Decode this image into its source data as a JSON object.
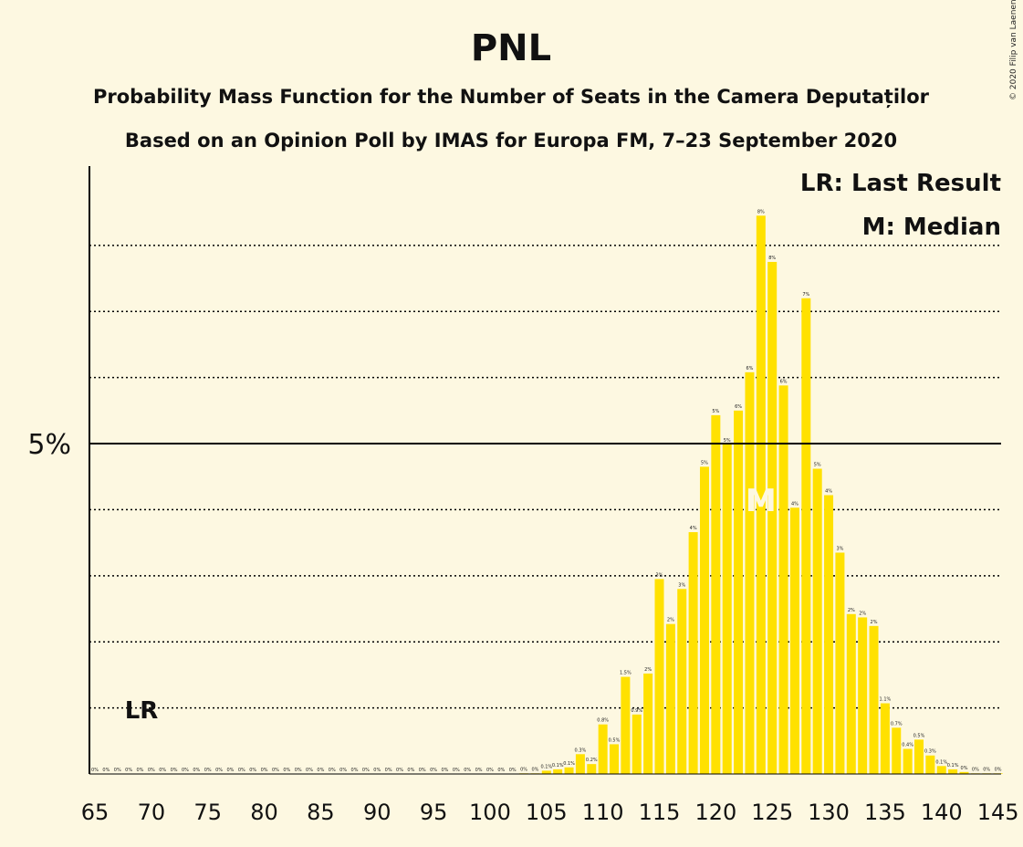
{
  "chart_data": {
    "type": "bar",
    "title": "PNL",
    "subtitle": "Probability Mass Function for the Number of Seats in the Camera Deputaților",
    "subtitle2": "Based on an Opinion Poll by IMAS for Europa FM, 7–23 September 2020",
    "copyright": "© 2020 Filip van Laenen",
    "legend": [
      "LR: Last Result",
      "M: Median"
    ],
    "legend_position": "top-right",
    "lr_seat": 69,
    "lr_label": "LR",
    "median_seat": 124,
    "median_label": "M",
    "y_tick_label": "5%",
    "y_tick_value": 5,
    "ylim": [
      0,
      9.2
    ],
    "grid": [
      1,
      2,
      3,
      4,
      6,
      7,
      8
    ],
    "x": [
      65,
      66,
      67,
      68,
      69,
      70,
      71,
      72,
      73,
      74,
      75,
      76,
      77,
      78,
      79,
      80,
      81,
      82,
      83,
      84,
      85,
      86,
      87,
      88,
      89,
      90,
      91,
      92,
      93,
      94,
      95,
      96,
      97,
      98,
      99,
      100,
      101,
      102,
      103,
      104,
      105,
      106,
      107,
      108,
      109,
      110,
      111,
      112,
      113,
      114,
      115,
      116,
      117,
      118,
      119,
      120,
      121,
      122,
      123,
      124,
      125,
      126,
      127,
      128,
      129,
      130,
      131,
      132,
      133,
      134,
      135,
      136,
      137,
      138,
      139,
      140,
      141,
      142,
      143,
      144,
      145
    ],
    "values": [
      0,
      0,
      0,
      0,
      0,
      0,
      0,
      0,
      0,
      0,
      0,
      0,
      0,
      0,
      0,
      0,
      0,
      0,
      0,
      0,
      0,
      0,
      0,
      0,
      0,
      0,
      0,
      0,
      0,
      0,
      0,
      0,
      0,
      0,
      0,
      0,
      0,
      0,
      0.01,
      0.01,
      0.05,
      0.07,
      0.1,
      0.3,
      0.15,
      0.75,
      0.45,
      1.47,
      0.9,
      1.52,
      2.95,
      2.27,
      2.8,
      3.66,
      4.65,
      5.43,
      4.99,
      5.5,
      6.08,
      8.45,
      7.75,
      5.88,
      4.03,
      7.2,
      4.62,
      4.22,
      3.35,
      2.42,
      2.37,
      2.24,
      1.07,
      0.7,
      0.38,
      0.52,
      0.28,
      0.12,
      0.07,
      0.03,
      0.01,
      0.01,
      0.01
    ],
    "labels": [
      "0%",
      "0%",
      "0%",
      "0%",
      "0%",
      "0%",
      "0%",
      "0%",
      "0%",
      "0%",
      "0%",
      "0%",
      "0%",
      "0%",
      "0%",
      "0%",
      "0%",
      "0%",
      "0%",
      "0%",
      "0%",
      "0%",
      "0%",
      "0%",
      "0%",
      "0%",
      "0%",
      "0%",
      "0%",
      "0%",
      "0%",
      "0%",
      "0%",
      "0%",
      "0%",
      "0%",
      "0%",
      "0%",
      "0%",
      "0%",
      "0.1%",
      "0.1%",
      "0.1%",
      "0.3%",
      "0.2%",
      "0.8%",
      "0.5%",
      "1.5%",
      "0.9%",
      "2%",
      "3%",
      "2%",
      "3%",
      "4%",
      "5%",
      "5%",
      "5%",
      "6%",
      "6%",
      "8%",
      "8%",
      "6%",
      "4%",
      "7%",
      "5%",
      "4%",
      "3%",
      "2%",
      "2%",
      "2%",
      "1.1%",
      "0.7%",
      "0.4%",
      "0.5%",
      "0.3%",
      "0.1%",
      "0.1%",
      "0%",
      "0%",
      "0%",
      "0%"
    ],
    "x_ticks": [
      65,
      70,
      75,
      80,
      85,
      90,
      95,
      100,
      105,
      110,
      115,
      120,
      125,
      130,
      135,
      140,
      145
    ],
    "x_tick_labels": [
      "65",
      "70",
      "75",
      "80",
      "85",
      "90",
      "95",
      "100",
      "105",
      "110",
      "115",
      "120",
      "125",
      "130",
      "135",
      "140",
      "145"
    ],
    "colors": {
      "bar": "#ffe100",
      "background": "#fdf8e1",
      "axis": "#000000"
    }
  }
}
